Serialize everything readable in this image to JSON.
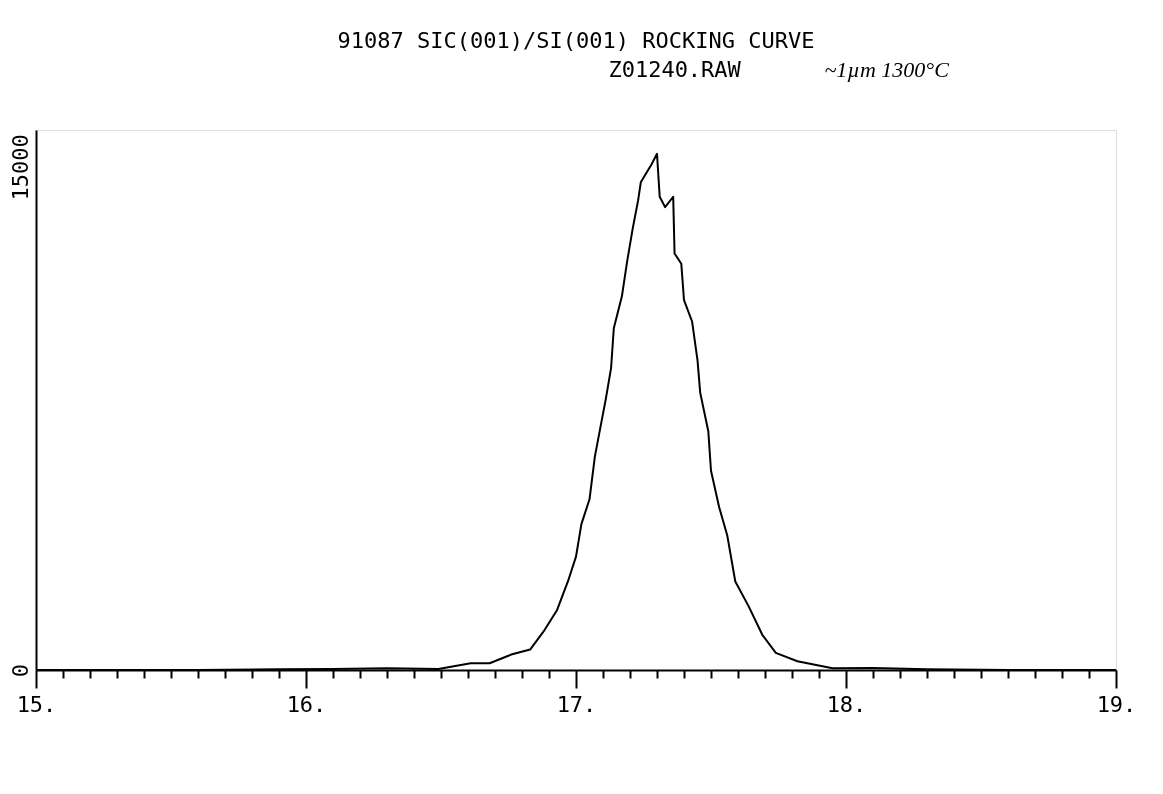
{
  "chart_data": {
    "type": "line",
    "title": "91087 SIC(001)/SI(001) ROCKING CURVE",
    "annotations": [
      "Z01240.RAW",
      "~1µm 1300°C"
    ],
    "series": [
      {
        "color": "#000000",
        "x": [
          15.0,
          15.3,
          15.6,
          15.9,
          16.1,
          16.3,
          16.49,
          16.61,
          16.68,
          16.76,
          16.83,
          16.88,
          16.93,
          16.97,
          17.0,
          17.02,
          17.05,
          17.07,
          17.09,
          17.11,
          17.13,
          17.14,
          17.17,
          17.19,
          17.21,
          17.23,
          17.24,
          17.28,
          17.3,
          17.31,
          17.33,
          17.36,
          17.365,
          17.39,
          17.4,
          17.43,
          17.45,
          17.46,
          17.49,
          17.5,
          17.53,
          17.56,
          17.59,
          17.64,
          17.69,
          17.74,
          17.82,
          17.95,
          18.1,
          18.3,
          18.6,
          19.0
        ],
        "values": [
          0,
          0,
          0,
          20,
          30,
          50,
          30,
          200,
          200,
          460,
          610,
          1150,
          1790,
          2640,
          3380,
          4350,
          5090,
          6370,
          7220,
          8060,
          9010,
          10190,
          11140,
          12210,
          13160,
          14000,
          14540,
          15080,
          15390,
          14110,
          13800,
          14110,
          12420,
          12110,
          11030,
          10390,
          9240,
          8270,
          7120,
          5940,
          4860,
          4020,
          2640,
          1890,
          1050,
          510,
          260,
          50,
          60,
          20,
          0,
          0
        ]
      }
    ],
    "xlim": [
      15,
      19
    ],
    "ylim": [
      0,
      16100
    ],
    "xticks": [
      {
        "value": 15,
        "label": "15."
      },
      {
        "value": 15.1,
        "label": null
      },
      {
        "value": 15.2,
        "label": null
      },
      {
        "value": 15.3,
        "label": null
      },
      {
        "value": 15.4,
        "label": null
      },
      {
        "value": 15.5,
        "label": null
      },
      {
        "value": 15.6,
        "label": null
      },
      {
        "value": 15.7,
        "label": null
      },
      {
        "value": 15.8,
        "label": null
      },
      {
        "value": 15.9,
        "label": null
      },
      {
        "value": 16,
        "label": "16."
      },
      {
        "value": 16.1,
        "label": null
      },
      {
        "value": 16.2,
        "label": null
      },
      {
        "value": 16.3,
        "label": null
      },
      {
        "value": 16.4,
        "label": null
      },
      {
        "value": 16.5,
        "label": null
      },
      {
        "value": 16.6,
        "label": null
      },
      {
        "value": 16.7,
        "label": null
      },
      {
        "value": 16.8,
        "label": null
      },
      {
        "value": 16.9,
        "label": null
      },
      {
        "value": 17,
        "label": "17."
      },
      {
        "value": 17.1,
        "label": null
      },
      {
        "value": 17.2,
        "label": null
      },
      {
        "value": 17.3,
        "label": null
      },
      {
        "value": 17.4,
        "label": null
      },
      {
        "value": 17.5,
        "label": null
      },
      {
        "value": 17.6,
        "label": null
      },
      {
        "value": 17.7,
        "label": null
      },
      {
        "value": 17.8,
        "label": null
      },
      {
        "value": 17.9,
        "label": null
      },
      {
        "value": 18,
        "label": "18."
      },
      {
        "value": 18.1,
        "label": null
      },
      {
        "value": 18.2,
        "label": null
      },
      {
        "value": 18.3,
        "label": null
      },
      {
        "value": 18.4,
        "label": null
      },
      {
        "value": 18.5,
        "label": null
      },
      {
        "value": 18.6,
        "label": null
      },
      {
        "value": 18.7,
        "label": null
      },
      {
        "value": 18.8,
        "label": null
      },
      {
        "value": 18.9,
        "label": null
      },
      {
        "value": 19,
        "label": "19."
      }
    ],
    "yticks": [
      0,
      15000
    ],
    "grid": false,
    "marker": "none",
    "line_style": "solid"
  }
}
